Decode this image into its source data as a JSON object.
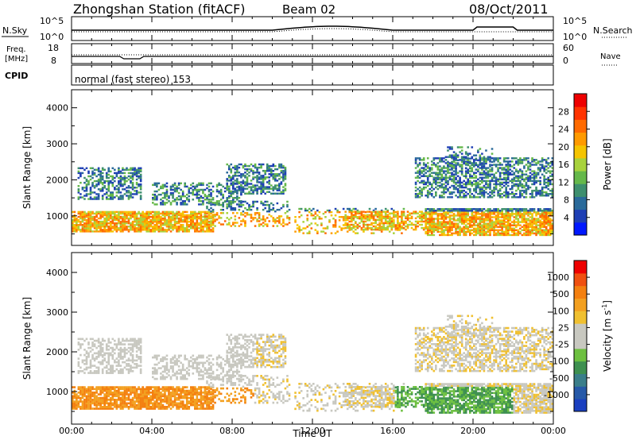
{
  "header": {
    "title": "Zhongshan Station (fitACF)",
    "beam": "Beam 02",
    "date": "08/Oct/2011"
  },
  "status_panels": {
    "nsky_label": "N.Sky",
    "nsearch_label": "N.Search",
    "freq_label_line1": "Freq.",
    "freq_label_line2": "[MHz]",
    "nave_label": "Nave",
    "cpid_label": "CPID",
    "nsky_ticks": [
      "10^5",
      "10^0"
    ],
    "nsearch_ticks": [
      "10^5",
      "10^0"
    ],
    "freq_ticks": [
      "18",
      "8"
    ],
    "nave_ticks": [
      "60",
      "0"
    ],
    "cpid_text": "normal (fast stereo) 153"
  },
  "chart_data": [
    {
      "type": "heatmap",
      "name": "power",
      "ylabel": "Slant Range [km]",
      "ylim": [
        180,
        4500
      ],
      "yticks": [
        "1000",
        "2000",
        "3000",
        "4000"
      ],
      "xlim": [
        0,
        24
      ],
      "xticks": [
        "00:00",
        "04:00",
        "08:00",
        "12:00",
        "16:00",
        "20:00",
        "00:00"
      ],
      "colorbar": {
        "label": "Power [dB]",
        "ticks": [
          "4",
          "8",
          "12",
          "16",
          "20",
          "24",
          "28"
        ],
        "colors": [
          "#0018ff",
          "#1e3fb4",
          "#2a6a9a",
          "#3e8f6e",
          "#65b84a",
          "#a8d23c",
          "#f5c400",
          "#ff9a00",
          "#ff6a00",
          "#ff3300",
          "#ee0000"
        ]
      }
    },
    {
      "type": "heatmap",
      "name": "velocity",
      "ylabel": "Slant Range [km]",
      "ylim": [
        180,
        4500
      ],
      "yticks": [
        "1000",
        "2000",
        "3000",
        "4000"
      ],
      "xlim": [
        0,
        24
      ],
      "xticks": [
        "00:00",
        "04:00",
        "08:00",
        "12:00",
        "16:00",
        "20:00",
        "00:00"
      ],
      "xlabel": "Time UT",
      "colorbar": {
        "label": "Velocity [m s^-1]",
        "ticks": [
          "1000",
          "500",
          "100",
          "25",
          "-25",
          "-100",
          "-500",
          "-1000"
        ],
        "colors": [
          "#1a3fbf",
          "#2659a8",
          "#3a7e8a",
          "#3e9050",
          "#6dc040",
          "#c8c8c0",
          "#c8c8c0",
          "#f0c030",
          "#f3a020",
          "#f48010",
          "#f05010",
          "#ee0000"
        ]
      }
    }
  ]
}
